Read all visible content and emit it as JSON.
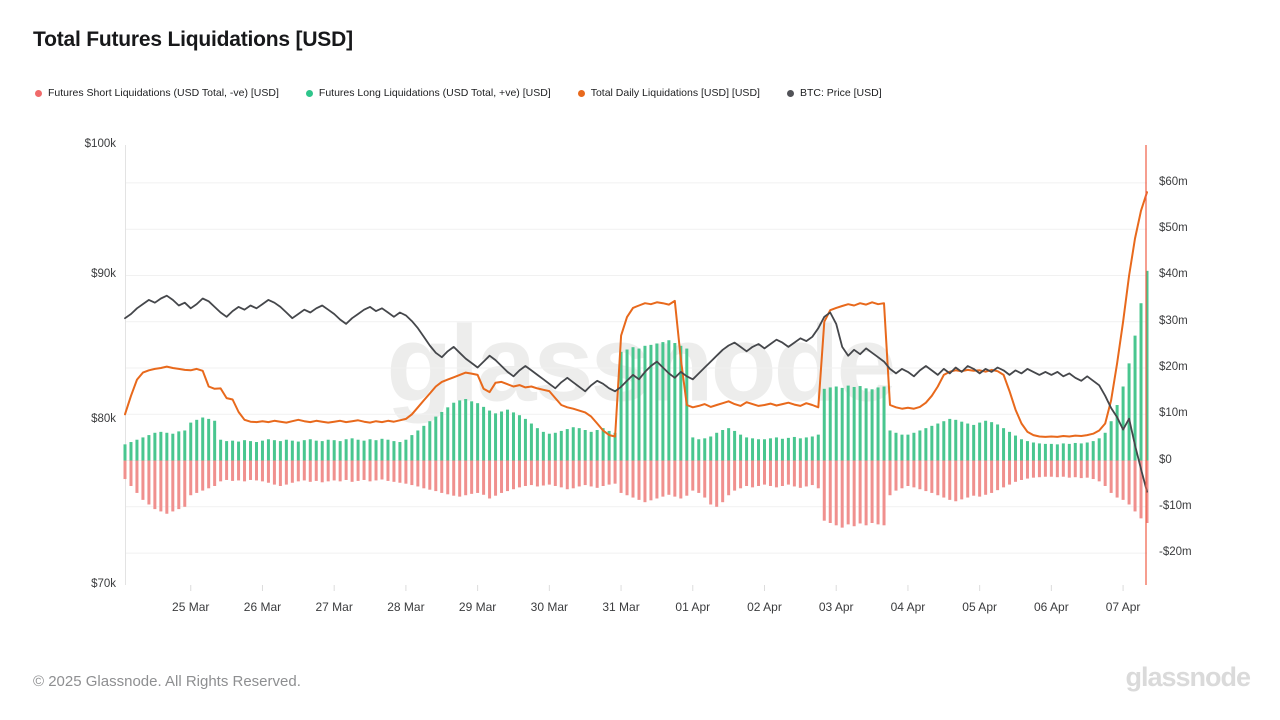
{
  "title": "Total Futures Liquidations [USD]",
  "watermark": "glassnode",
  "footer": {
    "copyright": "© 2025 Glassnode. All Rights Reserved.",
    "brand": "glassnode"
  },
  "legend": [
    {
      "label": "Futures Short Liquidations (USD Total, -ve) [USD]",
      "color": "#f06a6a"
    },
    {
      "label": "Futures Long Liquidations (USD Total, +ve) [USD]",
      "color": "#2ec58b"
    },
    {
      "label": "Total Daily Liquidations [USD] [USD]",
      "color": "#e8691c"
    },
    {
      "label": "BTC: Price [USD]",
      "color": "#515257"
    }
  ],
  "chart_data": {
    "type": "mixed",
    "description": "Hourly futures liquidations (bars, right axis, millions USD) with 24h total liquidations line (right axis) and BTC price (left axis, log scale, thousands USD). Data sampled every 2 hours from 24 Mar 02:00 to 07 Apr 08:00.",
    "grid": "horizontal",
    "legend_position": "top",
    "points_per_day": 12,
    "x_axis": {
      "tick_labels": [
        "25 Mar",
        "26 Mar",
        "27 Mar",
        "28 Mar",
        "29 Mar",
        "30 Mar",
        "31 Mar",
        "01 Apr",
        "02 Apr",
        "03 Apr",
        "04 Apr",
        "05 Apr",
        "06 Apr",
        "07 Apr"
      ],
      "first_tick_index": 11,
      "tick_index_step": 12
    },
    "left_axis": {
      "title": "BTC price (USD)",
      "scale": "log",
      "min_k": 70,
      "max_k": 100,
      "tick_values_k": [
        100,
        90,
        80,
        70
      ],
      "tick_labels": [
        "$100k",
        "$90k",
        "$80k",
        "$70k"
      ]
    },
    "right_axis": {
      "title": "Liquidations (USD)",
      "scale": "linear",
      "min_m": -26.9,
      "max_m": 68.2,
      "tick_values_m": [
        60,
        50,
        40,
        30,
        20,
        10,
        0,
        -10,
        -20
      ],
      "tick_labels": [
        "$60m",
        "$50m",
        "$40m",
        "$30m",
        "$20m",
        "$10m",
        "$0",
        "-$10m",
        "-$20m"
      ]
    },
    "current_time_marker_color": "#ef5d45",
    "series": [
      {
        "name": "Futures Short Liquidations (USD Total, -ve) [USD]",
        "type": "bar",
        "axis": "right",
        "unit": "million USD",
        "color": "#f0908e",
        "values": [
          -4.0,
          -5.5,
          -7.0,
          -8.5,
          -9.5,
          -10.5,
          -11.0,
          -11.5,
          -11.0,
          -10.5,
          -10.0,
          -7.5,
          -7.0,
          -6.5,
          -6.0,
          -5.5,
          -4.5,
          -4.2,
          -4.4,
          -4.3,
          -4.5,
          -4.2,
          -4.3,
          -4.5,
          -4.8,
          -5.2,
          -5.5,
          -5.2,
          -4.8,
          -4.5,
          -4.3,
          -4.6,
          -4.4,
          -4.7,
          -4.5,
          -4.3,
          -4.5,
          -4.2,
          -4.6,
          -4.4,
          -4.2,
          -4.5,
          -4.3,
          -4.1,
          -4.4,
          -4.6,
          -4.8,
          -5.0,
          -5.3,
          -5.6,
          -6.0,
          -6.3,
          -6.6,
          -7.0,
          -7.3,
          -7.6,
          -7.8,
          -7.5,
          -7.2,
          -7.0,
          -7.4,
          -8.2,
          -7.6,
          -7.0,
          -6.6,
          -6.2,
          -5.8,
          -5.5,
          -5.3,
          -5.6,
          -5.4,
          -5.2,
          -5.5,
          -5.8,
          -6.2,
          -6.0,
          -5.6,
          -5.3,
          -5.6,
          -5.9,
          -5.5,
          -5.2,
          -5.0,
          -7.0,
          -7.5,
          -8.0,
          -8.5,
          -9.0,
          -8.6,
          -8.2,
          -7.8,
          -7.4,
          -7.8,
          -8.2,
          -7.6,
          -6.5,
          -7.0,
          -8.0,
          -9.5,
          -10.0,
          -9.0,
          -7.5,
          -6.5,
          -6.0,
          -5.5,
          -5.8,
          -5.5,
          -5.2,
          -5.5,
          -5.8,
          -5.5,
          -5.2,
          -5.6,
          -5.9,
          -5.6,
          -5.3,
          -6.0,
          -13.0,
          -13.5,
          -14.0,
          -14.5,
          -13.8,
          -14.2,
          -13.6,
          -14.0,
          -13.5,
          -13.8,
          -14.0,
          -7.5,
          -6.5,
          -6.0,
          -5.5,
          -5.8,
          -6.2,
          -6.6,
          -7.0,
          -7.5,
          -8.0,
          -8.5,
          -8.8,
          -8.4,
          -8.0,
          -7.6,
          -7.8,
          -7.4,
          -7.0,
          -6.4,
          -5.8,
          -5.2,
          -4.6,
          -4.2,
          -3.9,
          -3.7,
          -3.6,
          -3.5,
          -3.5,
          -3.6,
          -3.5,
          -3.7,
          -3.6,
          -3.8,
          -3.7,
          -4.0,
          -4.5,
          -5.5,
          -7.0,
          -8.0,
          -8.5,
          -9.5,
          -11.0,
          -12.5,
          -13.5
        ]
      },
      {
        "name": "Futures Long Liquidations (USD Total, +ve) [USD]",
        "type": "bar",
        "axis": "right",
        "unit": "million USD",
        "color": "#49c68f",
        "values": [
          3.5,
          4.0,
          4.5,
          5.0,
          5.5,
          6.0,
          6.2,
          6.0,
          5.8,
          6.3,
          6.5,
          8.2,
          8.8,
          9.3,
          9.0,
          8.6,
          4.5,
          4.2,
          4.3,
          4.1,
          4.4,
          4.2,
          4.0,
          4.3,
          4.6,
          4.4,
          4.2,
          4.5,
          4.3,
          4.1,
          4.4,
          4.6,
          4.3,
          4.2,
          4.5,
          4.4,
          4.2,
          4.6,
          4.8,
          4.5,
          4.3,
          4.6,
          4.4,
          4.7,
          4.5,
          4.2,
          4.0,
          4.5,
          5.5,
          6.5,
          7.5,
          8.5,
          9.5,
          10.5,
          11.5,
          12.5,
          13.0,
          13.3,
          12.8,
          12.4,
          11.6,
          10.8,
          10.2,
          10.6,
          11.0,
          10.4,
          9.8,
          9.0,
          8.0,
          7.0,
          6.2,
          5.8,
          6.0,
          6.4,
          6.8,
          7.2,
          7.0,
          6.6,
          6.2,
          6.6,
          7.0,
          6.4,
          6.0,
          23.5,
          24.0,
          24.5,
          24.2,
          24.8,
          25.0,
          25.3,
          25.6,
          26.0,
          25.4,
          24.8,
          24.2,
          5.0,
          4.6,
          4.8,
          5.2,
          6.0,
          6.6,
          7.0,
          6.4,
          5.6,
          5.0,
          4.8,
          4.6,
          4.6,
          4.8,
          5.0,
          4.7,
          4.9,
          5.1,
          4.8,
          5.0,
          5.2,
          5.6,
          15.5,
          15.8,
          16.0,
          15.7,
          16.2,
          15.9,
          16.1,
          15.6,
          15.4,
          15.8,
          16.0,
          6.5,
          6.0,
          5.6,
          5.6,
          6.0,
          6.5,
          7.0,
          7.5,
          8.0,
          8.5,
          9.0,
          8.8,
          8.4,
          8.0,
          7.7,
          8.2,
          8.6,
          8.3,
          7.8,
          7.0,
          6.2,
          5.4,
          4.6,
          4.2,
          3.9,
          3.7,
          3.6,
          3.6,
          3.5,
          3.7,
          3.6,
          3.8,
          3.7,
          3.9,
          4.2,
          4.8,
          6.0,
          8.5,
          12.0,
          16.0,
          21.0,
          27.0,
          34.0,
          41.0
        ]
      },
      {
        "name": "Total Daily Liquidations [USD] [USD]",
        "type": "line",
        "axis": "right",
        "unit": "million USD",
        "color": "#e8691c",
        "values": [
          10.0,
          14.0,
          17.5,
          19.0,
          19.5,
          19.8,
          20.0,
          20.3,
          20.0,
          19.8,
          19.6,
          19.5,
          19.8,
          19.4,
          16.0,
          15.5,
          15.6,
          13.5,
          13.2,
          10.5,
          8.8,
          8.4,
          8.3,
          8.5,
          8.3,
          8.6,
          8.4,
          8.2,
          8.5,
          8.8,
          8.5,
          8.3,
          8.6,
          8.4,
          8.2,
          8.4,
          8.6,
          8.3,
          8.5,
          8.7,
          8.4,
          8.2,
          8.5,
          8.3,
          8.6,
          8.4,
          8.7,
          9.0,
          10.0,
          11.5,
          13.0,
          14.5,
          16.0,
          17.0,
          17.5,
          18.0,
          18.5,
          19.0,
          18.8,
          18.5,
          15.5,
          14.8,
          16.8,
          17.0,
          16.5,
          16.0,
          16.3,
          15.8,
          16.0,
          15.6,
          15.3,
          15.0,
          13.5,
          12.0,
          11.5,
          11.2,
          10.8,
          10.4,
          9.5,
          8.0,
          6.5,
          5.5,
          5.2,
          27.0,
          31.0,
          33.0,
          33.5,
          34.0,
          33.8,
          34.2,
          34.0,
          33.7,
          34.5,
          22.0,
          12.0,
          11.5,
          11.8,
          12.2,
          11.6,
          12.0,
          12.4,
          12.8,
          12.2,
          11.8,
          12.6,
          12.2,
          11.8,
          12.0,
          12.3,
          11.9,
          12.2,
          12.5,
          12.1,
          11.8,
          12.4,
          12.0,
          11.5,
          30.0,
          32.5,
          33.0,
          33.4,
          33.8,
          33.5,
          34.0,
          33.7,
          34.2,
          33.8,
          34.0,
          12.0,
          11.5,
          11.2,
          11.4,
          11.2,
          11.6,
          12.5,
          14.0,
          16.0,
          18.5,
          19.2,
          19.5,
          19.3,
          19.6,
          19.4,
          19.5,
          19.2,
          19.6,
          19.3,
          18.5,
          15.0,
          11.0,
          8.0,
          6.2,
          5.5,
          5.2,
          5.1,
          5.2,
          5.1,
          5.3,
          5.2,
          5.4,
          5.3,
          5.5,
          5.8,
          6.5,
          8.0,
          13.0,
          21.0,
          30.0,
          40.0,
          48.0,
          54.0,
          58.0
        ]
      },
      {
        "name": "BTC: Price [USD]",
        "type": "line",
        "axis": "left",
        "unit": "thousand USD",
        "color": "#45474b",
        "values": [
          86.9,
          87.2,
          87.6,
          87.9,
          88.2,
          88.0,
          88.3,
          88.5,
          88.2,
          87.8,
          88.0,
          87.6,
          87.9,
          88.3,
          88.1,
          87.7,
          87.3,
          87.0,
          87.4,
          87.7,
          87.5,
          87.8,
          87.6,
          87.9,
          88.2,
          88.0,
          87.7,
          87.3,
          86.9,
          87.2,
          87.5,
          87.3,
          87.6,
          87.8,
          87.5,
          87.2,
          86.8,
          86.5,
          86.9,
          87.2,
          87.5,
          87.7,
          87.4,
          87.6,
          87.3,
          87.0,
          87.3,
          87.1,
          86.7,
          86.2,
          85.6,
          85.0,
          84.5,
          84.2,
          84.6,
          84.9,
          84.5,
          84.1,
          83.8,
          83.5,
          83.9,
          84.3,
          84.0,
          83.6,
          83.2,
          82.9,
          83.3,
          83.6,
          83.3,
          83.0,
          82.7,
          82.4,
          82.1,
          82.5,
          82.8,
          82.5,
          82.2,
          81.9,
          82.3,
          82.6,
          82.4,
          82.1,
          81.9,
          82.2,
          82.6,
          83.0,
          82.7,
          83.2,
          83.6,
          83.9,
          83.5,
          83.1,
          82.8,
          83.2,
          82.9,
          82.7,
          83.1,
          83.5,
          83.9,
          84.3,
          84.7,
          85.0,
          85.2,
          84.9,
          84.6,
          84.9,
          85.1,
          84.8,
          85.1,
          85.4,
          85.2,
          84.9,
          85.2,
          85.5,
          85.3,
          85.6,
          86.2,
          87.0,
          87.3,
          86.5,
          84.9,
          84.3,
          84.7,
          84.4,
          84.8,
          84.5,
          84.2,
          83.9,
          83.4,
          83.1,
          83.4,
          83.2,
          82.9,
          83.3,
          83.6,
          83.3,
          83.0,
          83.4,
          83.1,
          83.5,
          83.2,
          83.6,
          83.4,
          83.1,
          83.4,
          83.2,
          83.5,
          83.3,
          83.0,
          83.3,
          83.1,
          83.4,
          83.2,
          83.0,
          83.2,
          83.0,
          83.2,
          82.9,
          83.1,
          82.8,
          82.6,
          82.9,
          82.6,
          82.3,
          81.6,
          80.8,
          80.2,
          79.4,
          80.1,
          78.4,
          76.9,
          75.5
        ]
      }
    ]
  }
}
